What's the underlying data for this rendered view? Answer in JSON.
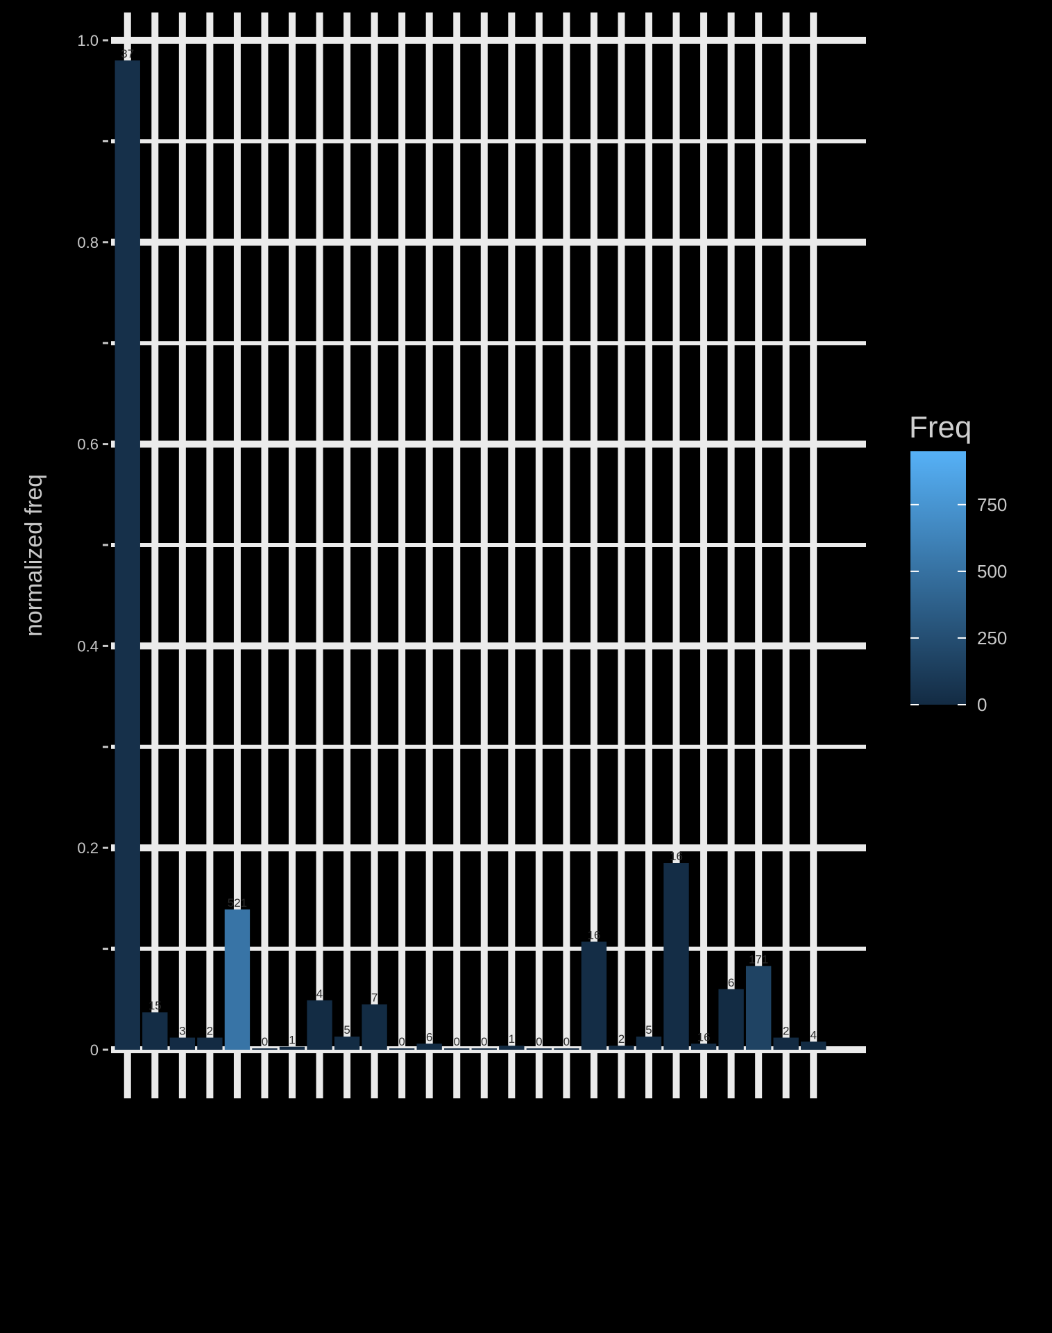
{
  "chart_data": {
    "type": "bar",
    "title": "",
    "xlabel": "",
    "ylabel": "normalized freq",
    "categories": [
      "",
      "",
      "",
      "",
      "",
      "",
      "",
      "",
      "",
      "",
      "",
      "",
      "",
      "",
      "",
      "",
      "",
      "",
      "",
      "",
      "",
      "",
      "",
      "",
      "",
      ""
    ],
    "values": [
      0.98,
      0.037,
      0.012,
      0.012,
      0.139,
      0.0,
      0.003,
      0.049,
      0.013,
      0.045,
      0.0,
      0.006,
      0.0,
      0.0,
      0.004,
      0.0,
      0.0,
      0.107,
      0.004,
      0.013,
      0.185,
      0.006,
      0.06,
      0.083,
      0.012,
      0.008
    ],
    "value_labels": [
      "37",
      "15",
      "3",
      "2",
      "521",
      "0",
      "1",
      "4",
      "5",
      "7",
      "0",
      "6",
      "0",
      "0",
      "1",
      "0",
      "0",
      "16",
      "2",
      "5",
      "16",
      "16",
      "6",
      "171",
      "2",
      "4"
    ],
    "y_tick_labels": [
      "0",
      "",
      "0.2",
      "",
      "0.4",
      "",
      "0.6",
      "",
      "0.8",
      "",
      "1.0"
    ],
    "ylim": [
      0,
      1.0
    ],
    "grid": true,
    "legend": {
      "title": "Freq",
      "placement": "right",
      "tick_labels": [
        "750",
        "500",
        "250",
        "0"
      ],
      "tick_values": [
        750,
        500,
        250,
        0
      ],
      "range": [
        0,
        950
      ],
      "color_low": "#132b43",
      "color_high": "#56b1f7"
    },
    "bar_freq": [
      37,
      15,
      3,
      2,
      521,
      0,
      1,
      4,
      5,
      7,
      0,
      6,
      0,
      0,
      1,
      0,
      0,
      16,
      2,
      5,
      16,
      16,
      6,
      171,
      2,
      4
    ]
  }
}
